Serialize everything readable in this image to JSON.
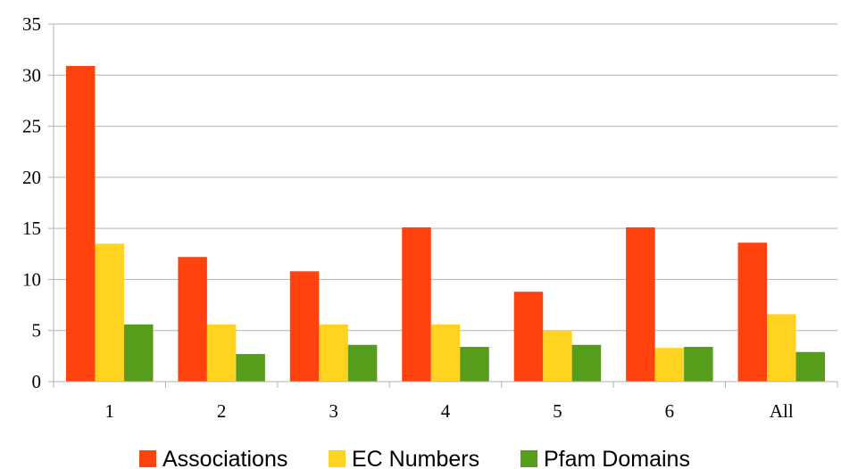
{
  "chart_data": {
    "type": "bar",
    "categories": [
      "1",
      "2",
      "3",
      "4",
      "5",
      "6",
      "All"
    ],
    "series": [
      {
        "name": "Associations",
        "color": "#ff420e",
        "values": [
          30.9,
          12.2,
          10.8,
          15.1,
          8.8,
          15.1,
          13.6
        ]
      },
      {
        "name": "EC Numbers",
        "color": "#ffd320",
        "values": [
          13.5,
          5.6,
          5.6,
          5.6,
          5.0,
          3.3,
          6.6
        ]
      },
      {
        "name": "Pfam Domains",
        "color": "#579d1c",
        "values": [
          5.6,
          2.7,
          3.6,
          3.4,
          3.6,
          3.4,
          2.9
        ]
      }
    ],
    "ylim": [
      0,
      35
    ],
    "yticks": [
      0,
      5,
      10,
      15,
      20,
      25,
      30,
      35
    ],
    "grid": true,
    "legend_position": "bottom"
  }
}
